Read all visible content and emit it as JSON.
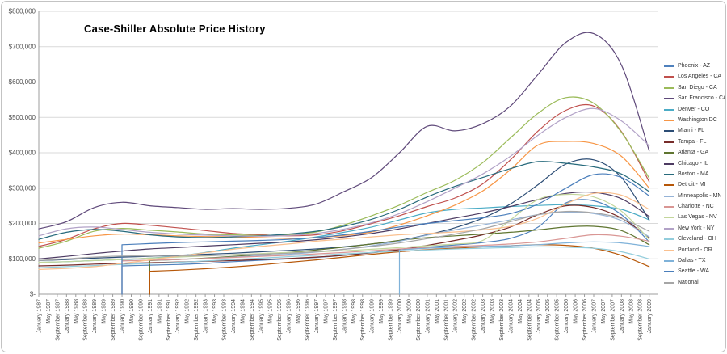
{
  "chart_data": {
    "type": "line",
    "title": "Case-Shiller Absolute Price History",
    "unit": "USD, series values stored in thousands",
    "ylim": [
      0,
      800000
    ],
    "grid": "horizontal",
    "legend_position": "right",
    "y_ticks": [
      "$-",
      "$100,000",
      "$200,000",
      "$300,000",
      "$400,000",
      "$500,000",
      "$600,000",
      "$700,000",
      "$800,000"
    ],
    "x_ticks": [
      "January 1987",
      "May 1987",
      "September 1987",
      "January 1988",
      "May 1988",
      "September 1988",
      "January 1989",
      "May 1989",
      "September 1989",
      "January 1990",
      "May 1990",
      "September 1990",
      "January 1991",
      "May 1991",
      "September 1991",
      "January 1992",
      "May 1992",
      "September 1992",
      "January 1993",
      "May 1993",
      "September 1993",
      "January 1994",
      "May 1994",
      "September 1994",
      "January 1995",
      "May 1995",
      "September 1995",
      "January 1996",
      "May 1996",
      "September 1996",
      "January 1997",
      "May 1997",
      "September 1997",
      "January 1998",
      "May 1998",
      "September 1998",
      "January 1999",
      "May 1999",
      "September 1999",
      "January 2000",
      "May 2000",
      "September 2000",
      "January 2001",
      "May 2001",
      "September 2001",
      "January 2002",
      "May 2002",
      "September 2002",
      "January 2003",
      "May 2003",
      "September 2003",
      "January 2004",
      "May 2004",
      "September 2004",
      "January 2005",
      "May 2005",
      "September 2005",
      "January 2006",
      "May 2006",
      "September 2006",
      "January 2007",
      "May 2007",
      "September 2007",
      "January 2008",
      "May 2008",
      "September 2008",
      "January 2009"
    ],
    "series": [
      {
        "name": "Phoenix - AZ",
        "color": "#4F81BD",
        "start": 1990,
        "drop": true,
        "values_k": [
          80,
          82,
          84,
          87,
          92,
          96,
          100,
          104,
          110,
          118,
          126,
          133,
          139,
          146,
          158,
          190,
          258,
          264,
          225,
          148
        ]
      },
      {
        "name": "Los Angeles - CA",
        "color": "#C0504D",
        "start": 1987,
        "drop": false,
        "values_k": [
          135,
          155,
          185,
          200,
          195,
          188,
          180,
          172,
          168,
          165,
          168,
          180,
          200,
          222,
          248,
          272,
          312,
          380,
          462,
          520,
          532,
          460,
          318
        ]
      },
      {
        "name": "San Diego - CA",
        "color": "#9BBB59",
        "start": 1987,
        "drop": false,
        "values_k": [
          130,
          150,
          178,
          186,
          181,
          176,
          170,
          168,
          166,
          168,
          176,
          196,
          222,
          252,
          288,
          322,
          372,
          442,
          512,
          556,
          540,
          458,
          328
        ]
      },
      {
        "name": "San Francisco - CA",
        "color": "#5F497A",
        "start": 1987,
        "drop": false,
        "values_k": [
          185,
          205,
          245,
          260,
          250,
          245,
          240,
          242,
          240,
          243,
          255,
          290,
          330,
          400,
          475,
          462,
          482,
          532,
          622,
          712,
          737,
          648,
          405
        ]
      },
      {
        "name": "Denver - CO",
        "color": "#4BACC6",
        "start": 1987,
        "drop": false,
        "values_k": [
          90,
          92,
          95,
          98,
          102,
          108,
          118,
          130,
          140,
          150,
          162,
          175,
          190,
          210,
          230,
          240,
          244,
          248,
          251,
          253,
          250,
          240,
          210
        ]
      },
      {
        "name": "Washington DC",
        "color": "#F79646",
        "start": 1987,
        "drop": false,
        "values_k": [
          145,
          155,
          165,
          170,
          168,
          165,
          163,
          162,
          160,
          158,
          160,
          166,
          176,
          196,
          222,
          252,
          292,
          352,
          422,
          432,
          426,
          390,
          300
        ]
      },
      {
        "name": "Miami - FL",
        "color": "#2C4D75",
        "start": 1987,
        "drop": false,
        "values_k": [
          95,
          98,
          102,
          105,
          107,
          110,
          113,
          116,
          120,
          124,
          128,
          134,
          142,
          152,
          168,
          188,
          215,
          255,
          310,
          368,
          380,
          330,
          210
        ]
      },
      {
        "name": "Tampa - FL",
        "color": "#772C2A",
        "start": 1987,
        "drop": false,
        "values_k": [
          80,
          82,
          85,
          87,
          89,
          91,
          93,
          95,
          98,
          101,
          105,
          110,
          117,
          126,
          138,
          152,
          168,
          190,
          225,
          250,
          245,
          215,
          160
        ]
      },
      {
        "name": "Atlanta - GA",
        "color": "#5F7530",
        "start": 1991,
        "drop": true,
        "values_k": [
          95,
          98,
          102,
          107,
          112,
          118,
          125,
          133,
          142,
          152,
          160,
          165,
          170,
          175,
          182,
          190,
          192,
          180,
          140
        ]
      },
      {
        "name": "Chicago - IL",
        "color": "#4D3B62",
        "start": 1987,
        "drop": false,
        "values_k": [
          100,
          107,
          115,
          122,
          128,
          132,
          136,
          140,
          144,
          148,
          154,
          162,
          172,
          185,
          200,
          215,
          230,
          248,
          268,
          285,
          288,
          270,
          220
        ]
      },
      {
        "name": "Boston - MA",
        "color": "#276A7C",
        "start": 1987,
        "drop": false,
        "values_k": [
          155,
          175,
          183,
          178,
          168,
          162,
          160,
          162,
          165,
          170,
          178,
          192,
          212,
          240,
          275,
          305,
          330,
          355,
          375,
          370,
          360,
          340,
          290
        ]
      },
      {
        "name": "Detroit - MI",
        "color": "#B65708",
        "start": 1991,
        "drop": true,
        "values_k": [
          65,
          68,
          72,
          77,
          83,
          90,
          97,
          105,
          113,
          120,
          126,
          130,
          134,
          137,
          140,
          138,
          130,
          110,
          78
        ]
      },
      {
        "name": "Minneapolis - MN",
        "color": "#95B3D7",
        "start": 1990,
        "drop": true,
        "values_k": [
          95,
          96,
          98,
          101,
          105,
          109,
          113,
          119,
          127,
          137,
          150,
          167,
          182,
          196,
          210,
          225,
          232,
          228,
          208,
          162
        ]
      },
      {
        "name": "Charlotte - NC",
        "color": "#D99694",
        "start": 1990,
        "drop": true,
        "values_k": [
          94,
          96,
          98,
          101,
          104,
          107,
          110,
          114,
          118,
          123,
          128,
          132,
          135,
          138,
          142,
          148,
          158,
          168,
          164,
          150
        ]
      },
      {
        "name": "Las Vegas - NV",
        "color": "#C3D69B",
        "start": 1987,
        "drop": false,
        "values_k": [
          90,
          92,
          95,
          98,
          102,
          105,
          108,
          112,
          115,
          118,
          120,
          123,
          127,
          132,
          137,
          142,
          152,
          210,
          268,
          282,
          275,
          235,
          155
        ]
      },
      {
        "name": "New York - NY",
        "color": "#B2A2C7",
        "start": 1987,
        "drop": false,
        "values_k": [
          165,
          185,
          190,
          183,
          175,
          170,
          167,
          165,
          164,
          166,
          172,
          184,
          202,
          228,
          262,
          300,
          340,
          390,
          450,
          500,
          525,
          490,
          420
        ]
      },
      {
        "name": "Cleveland - OH",
        "color": "#92CDDC",
        "start": 1987,
        "drop": false,
        "values_k": [
          75,
          78,
          81,
          84,
          87,
          90,
          94,
          98,
          102,
          106,
          110,
          114,
          118,
          122,
          125,
          128,
          130,
          132,
          134,
          133,
          130,
          120,
          100
        ]
      },
      {
        "name": "Portland - OR",
        "color": "#FAC08F",
        "start": 1987,
        "drop": false,
        "values_k": [
          70,
          73,
          78,
          87,
          97,
          107,
          117,
          127,
          135,
          142,
          150,
          156,
          162,
          168,
          172,
          176,
          182,
          192,
          215,
          255,
          285,
          280,
          240
        ]
      },
      {
        "name": "Dallas - TX",
        "color": "#7FB2D9",
        "start": 2000,
        "drop": true,
        "values_k": [
          125,
          130,
          133,
          135,
          137,
          140,
          145,
          148,
          145,
          135
        ]
      },
      {
        "name": "Seattle - WA",
        "color": "#4A7EBB",
        "start": 1990,
        "drop": true,
        "values_k": [
          140,
          143,
          146,
          148,
          150,
          152,
          155,
          160,
          168,
          178,
          190,
          200,
          208,
          216,
          228,
          255,
          300,
          338,
          330,
          278
        ]
      },
      {
        "name": "National",
        "color": "#A6A6A6",
        "start": 1987,
        "drop": false,
        "values_k": [
          95,
          100,
          105,
          108,
          108,
          108,
          109,
          111,
          113,
          116,
          120,
          127,
          135,
          145,
          157,
          170,
          185,
          205,
          225,
          234,
          230,
          214,
          178
        ]
      }
    ]
  }
}
